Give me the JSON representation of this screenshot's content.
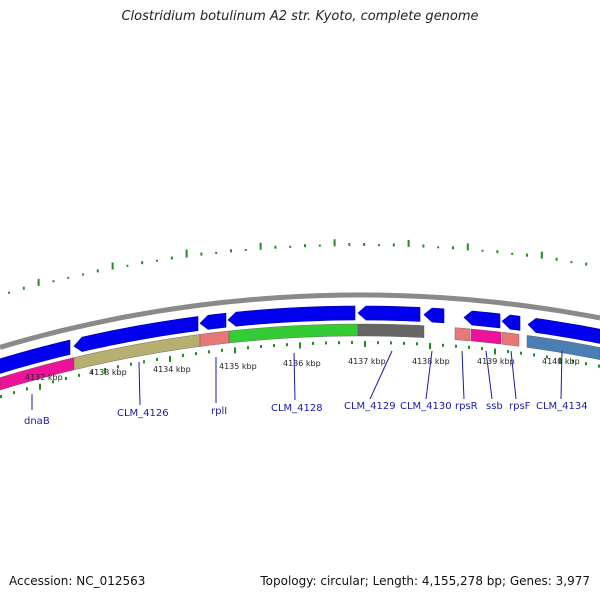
{
  "header": {
    "title": "Clostridium botulinum A2 str. Kyoto, complete genome"
  },
  "footer": {
    "accession": "Accession: NC_012563",
    "summary": "Topology: circular; Length: 4,155,278 bp; Genes: 3,977"
  },
  "map": {
    "kbp_labels": [
      "4132 kbp",
      "4133 kbp",
      "4134 kbp",
      "4135 kbp",
      "4136 kbp",
      "4137 kbp",
      "4138 kbp",
      "4139 kbp",
      "4140 kbp"
    ],
    "genes": [
      {
        "label": "dnaB",
        "color": "#ee1199"
      },
      {
        "label": "CLM_4126",
        "color": "#b5b070"
      },
      {
        "label": "rplI",
        "color": "#e87878"
      },
      {
        "label": "CLM_4128",
        "color": "#33cc33"
      },
      {
        "label": "CLM_4129",
        "color": "#666666"
      },
      {
        "label": "CLM_4130",
        "color": "#ffffff"
      },
      {
        "label": "rpsR",
        "color": "#e87878"
      },
      {
        "label": "ssb",
        "color": "#ee1199"
      },
      {
        "label": "rpsF",
        "color": "#e87878"
      },
      {
        "label": "CLM_4134",
        "color": "#4a7fb5"
      }
    ],
    "colors": {
      "cds_strand": "#0000ee",
      "backbone": "#8a8a8a",
      "gc_ticks": "#228b22",
      "kbp_ticks": "#228b22",
      "label_leaders": "#1a1aa8"
    }
  }
}
